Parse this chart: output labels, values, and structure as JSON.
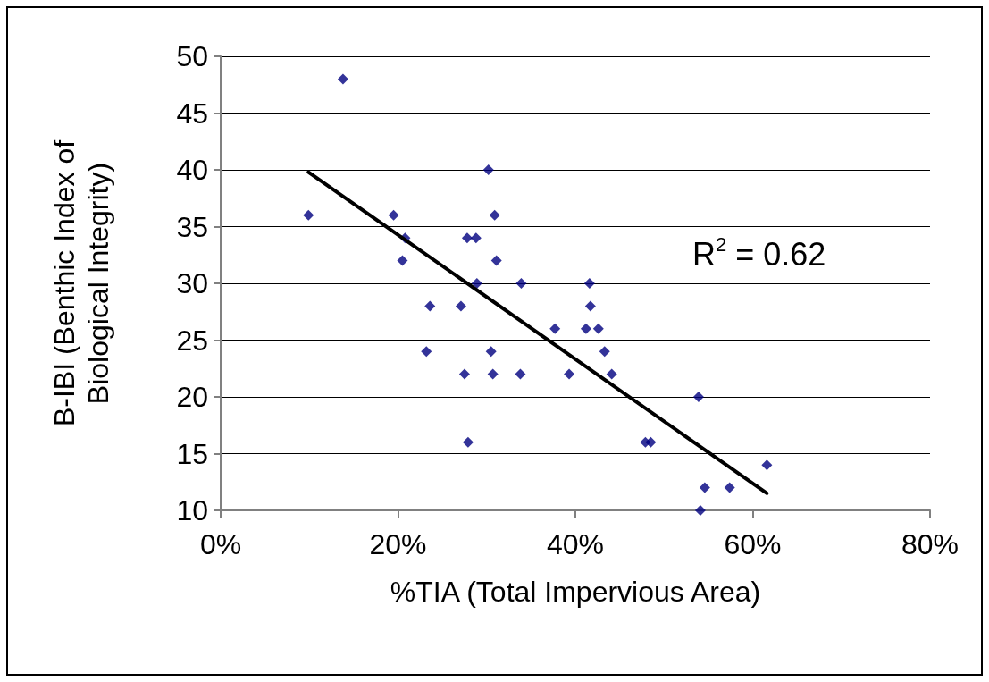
{
  "chart_data": {
    "type": "scatter",
    "xlabel": "%TIA (Total Impervious Area)",
    "ylabel": "B-IBI (Benthic Index of Biological Integrity)",
    "series": [
      {
        "color": "#000080",
        "marker": "diamond",
        "x": [
          9.9,
          13.8,
          19.5,
          20.8,
          20.5,
          23.6,
          23.2,
          30.2,
          30.9,
          27.8,
          28.8,
          31.1,
          28.9,
          33.9,
          27.1,
          37.7,
          30.5,
          27.5,
          30.7,
          33.8,
          39.3,
          27.9,
          41.6,
          41.7,
          41.2,
          42.6,
          43.3,
          44.1,
          53.9,
          47.9,
          48.5,
          61.6,
          54.6,
          57.4,
          54.1
        ],
        "values": [
          36,
          48,
          36,
          34,
          32,
          28,
          24,
          40,
          36,
          34,
          34,
          32,
          30,
          30,
          28,
          26,
          24,
          22,
          22,
          22,
          22,
          16,
          30,
          28,
          26,
          26,
          24,
          22,
          20,
          16,
          16,
          14,
          12,
          12,
          10
        ]
      },
      {
        "type": "line",
        "color": "#000000",
        "marker": "none",
        "x": [
          9.9,
          61.6
        ],
        "values": [
          39.8,
          11.5
        ]
      }
    ],
    "xlim": [
      0,
      80
    ],
    "xticks": [
      {
        "value": 0,
        "label": "0%"
      },
      {
        "value": 20,
        "label": "20%"
      },
      {
        "value": 40,
        "label": "40%"
      },
      {
        "value": 60,
        "label": "60%"
      },
      {
        "value": 80,
        "label": "80%"
      }
    ],
    "ylim": [
      10,
      50
    ],
    "yticks": [
      10,
      15,
      20,
      25,
      30,
      35,
      40,
      45,
      50
    ],
    "grid": "y",
    "annotations": [
      "R$^{2}$ = 0.62"
    ]
  }
}
